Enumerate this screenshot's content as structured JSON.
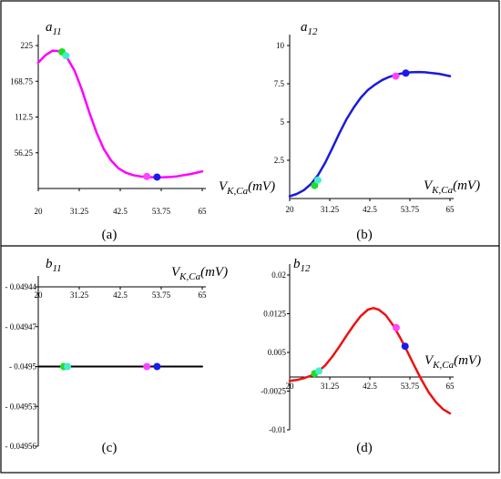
{
  "chart_data": [
    {
      "type": "line",
      "panel_label": "(a)",
      "ylabel": "a",
      "ylabel_sub": "11",
      "xlabel": "V",
      "xlabel_sub": "K,Ca",
      "xlabel_unit": "(mV)",
      "xlim": [
        20,
        65
      ],
      "ylim": [
        0,
        225
      ],
      "xticks": [
        "20",
        "31.25",
        "42.5",
        "53.75",
        "65"
      ],
      "yticks": [
        "225",
        "168.75",
        "112.5",
        "56.25"
      ],
      "ytick_values": [
        225,
        168.75,
        112.5,
        56.25
      ],
      "line_color": "#ff00ff",
      "series": [
        {
          "x": [
            20,
            22,
            24,
            26,
            28,
            30,
            32,
            34,
            36,
            38,
            40,
            42,
            44,
            46,
            48,
            50,
            52,
            54,
            56,
            58,
            60,
            62,
            65
          ],
          "values": [
            198,
            210,
            217,
            216,
            205,
            185,
            155,
            120,
            88,
            62,
            44,
            32,
            25,
            21,
            19,
            18,
            17.5,
            17.5,
            18,
            19,
            21,
            23,
            27
          ]
        }
      ],
      "points": [
        {
          "x": 26.5,
          "y": 215,
          "color": "#22dd22"
        },
        {
          "x": 27.6,
          "y": 209,
          "color": "#44eecc"
        },
        {
          "x": 49.8,
          "y": 19,
          "color": "#ff44ff"
        },
        {
          "x": 52.6,
          "y": 18,
          "color": "#1a1aee"
        }
      ]
    },
    {
      "type": "line",
      "panel_label": "(b)",
      "ylabel": "a",
      "ylabel_sub": "12",
      "xlabel": "V",
      "xlabel_sub": "K,Ca",
      "xlabel_unit": "(mV)",
      "xlim": [
        20,
        65
      ],
      "ylim": [
        0,
        10
      ],
      "xticks": [
        "20",
        "31.25",
        "42.5",
        "53.75",
        "65"
      ],
      "yticks": [
        "10",
        "7.5",
        "5",
        "2.5"
      ],
      "ytick_values": [
        10,
        7.5,
        5,
        2.5
      ],
      "line_color": "#1a1add",
      "series": [
        {
          "x": [
            20,
            22,
            24,
            26,
            28,
            30,
            32,
            34,
            36,
            38,
            40,
            42,
            44,
            46,
            48,
            50,
            52,
            54,
            56,
            58,
            60,
            62,
            65
          ],
          "values": [
            0.15,
            0.3,
            0.55,
            0.95,
            1.55,
            2.35,
            3.3,
            4.3,
            5.2,
            5.95,
            6.6,
            7.1,
            7.45,
            7.75,
            7.95,
            8.1,
            8.2,
            8.25,
            8.27,
            8.25,
            8.2,
            8.15,
            8.0
          ]
        }
      ],
      "points": [
        {
          "x": 27.0,
          "y": 0.85,
          "color": "#22dd22"
        },
        {
          "x": 27.9,
          "y": 1.2,
          "color": "#44eecc"
        },
        {
          "x": 49.8,
          "y": 8.0,
          "color": "#ff44ff"
        },
        {
          "x": 52.6,
          "y": 8.2,
          "color": "#1a1aee"
        }
      ]
    },
    {
      "type": "line",
      "panel_label": "(c)",
      "ylabel": "b",
      "ylabel_sub": "11",
      "xlabel": "V",
      "xlabel_sub": "K,Ca",
      "xlabel_unit": "(mV)",
      "xlim": [
        20,
        65
      ],
      "ylim": [
        -0.04956,
        -0.04944
      ],
      "xticks": [
        "20",
        "31.25",
        "42.5",
        "53.75",
        "65"
      ],
      "yticks": [
        "- 0.04944",
        "- 0.04947",
        "- 0.0495",
        "- 0.04953",
        "- 0.04956"
      ],
      "ytick_values": [
        -0.04944,
        -0.04947,
        -0.0495,
        -0.04953,
        -0.04956
      ],
      "line_color": "#000000",
      "series": [
        {
          "x": [
            20,
            65
          ],
          "values": [
            -0.0495,
            -0.0495
          ]
        }
      ],
      "points": [
        {
          "x": 27.0,
          "y": -0.0495,
          "color": "#22dd22"
        },
        {
          "x": 28.0,
          "y": -0.0495,
          "color": "#44eecc"
        },
        {
          "x": 49.8,
          "y": -0.0495,
          "color": "#ff44ff"
        },
        {
          "x": 52.6,
          "y": -0.0495,
          "color": "#1a1aee"
        }
      ]
    },
    {
      "type": "line",
      "panel_label": "(d)",
      "ylabel": "b",
      "ylabel_sub": "12",
      "xlabel": "V",
      "xlabel_sub": "K,Ca",
      "xlabel_unit": "(mV)",
      "xlim": [
        20,
        65
      ],
      "ylim": [
        -0.01,
        0.02
      ],
      "xticks": [
        "20",
        "31.25",
        "42.5",
        "53.75",
        "65"
      ],
      "yticks": [
        "0.02",
        "0.0125",
        "0.005",
        "-0.0025",
        "-0.01"
      ],
      "ytick_values": [
        0.02,
        0.0125,
        0.005,
        -0.0025,
        -0.01
      ],
      "line_color": "#ee1111",
      "series": [
        {
          "x": [
            20,
            22,
            24,
            26,
            28,
            30,
            32,
            34,
            36,
            38,
            40,
            42,
            43.5,
            45,
            47,
            49,
            51,
            53,
            55,
            57,
            59,
            61,
            63,
            65
          ],
          "values": [
            -0.0005,
            -0.00035,
            0.0,
            0.0005,
            0.0013,
            0.0025,
            0.0042,
            0.0062,
            0.0083,
            0.0103,
            0.0121,
            0.0133,
            0.0136,
            0.0133,
            0.0122,
            0.0103,
            0.0079,
            0.0052,
            0.0024,
            -0.0003,
            -0.0027,
            -0.0046,
            -0.006,
            -0.0068
          ]
        }
      ],
      "points": [
        {
          "x": 27.0,
          "y": 0.0009,
          "color": "#22dd22"
        },
        {
          "x": 28.2,
          "y": 0.0014,
          "color": "#44eecc"
        },
        {
          "x": 49.9,
          "y": 0.0098,
          "color": "#ff44ff"
        },
        {
          "x": 52.4,
          "y": 0.0062,
          "color": "#1a1aee"
        }
      ]
    }
  ]
}
